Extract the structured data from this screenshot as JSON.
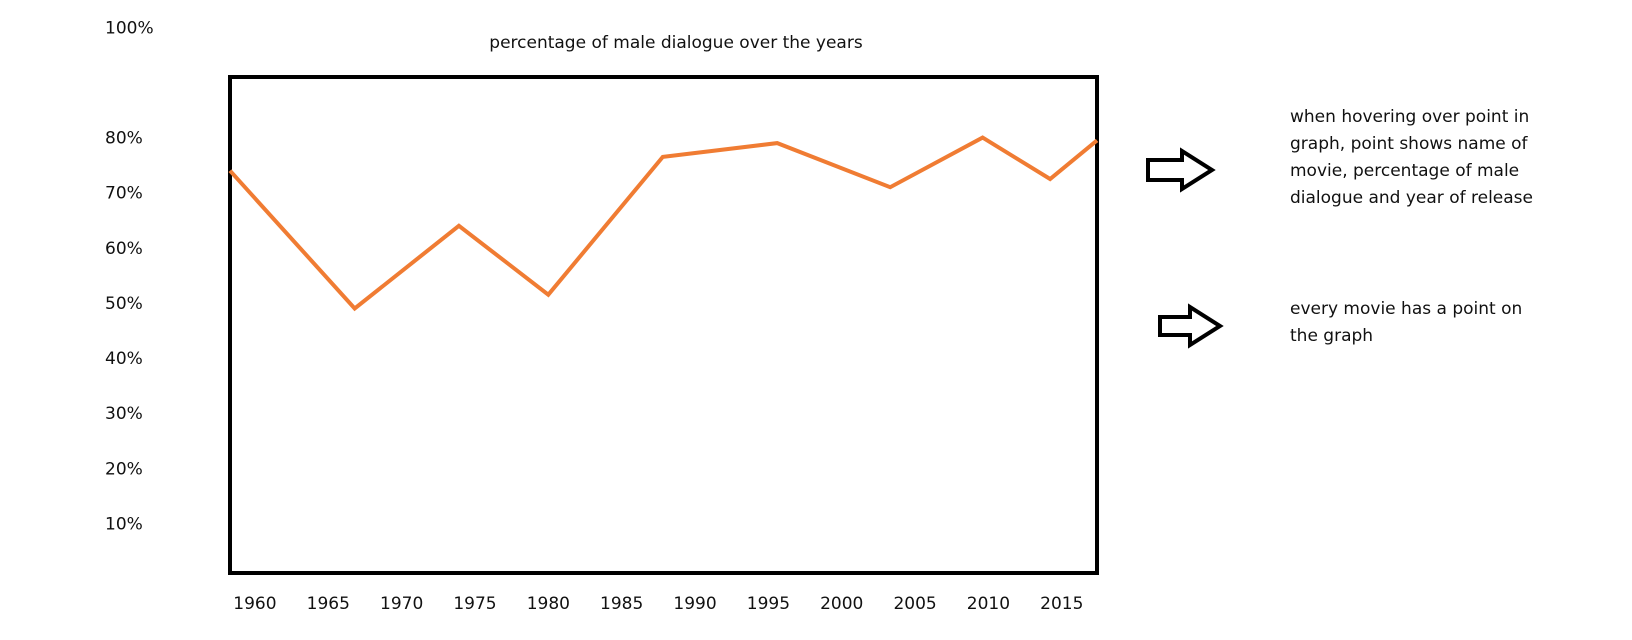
{
  "chart_data": {
    "type": "line",
    "title": "percentage of male dialogue over the years",
    "xlabel": "",
    "ylabel": "",
    "x_ticks": [
      "1960",
      "1965",
      "1970",
      "1975",
      "1980",
      "1985",
      "1990",
      "1995",
      "2000",
      "2005",
      "2010",
      "2015"
    ],
    "y_ticks": [
      "10%",
      "20%",
      "30%",
      "40%",
      "50%",
      "60%",
      "70%",
      "80%",
      "100%"
    ],
    "xlim": [
      1959.8,
      2018.9
    ],
    "ylim": [
      1,
      91
    ],
    "grid": false,
    "line_color": "#f07c33",
    "series": [
      {
        "x": [
          1959.8,
          1968.3,
          1975.4,
          1981.5,
          1989.3,
          1997.1,
          2004.8,
          2011.1,
          2015.7,
          2018.9
        ],
        "y": [
          74,
          49,
          64,
          51.5,
          76.5,
          79,
          71,
          80,
          72.5,
          79.5
        ]
      }
    ]
  },
  "notes": [
    {
      "text": "when hovering over point in graph, point shows name of movie, percentage of male dialogue and year of release",
      "icon": "right-arrow-icon"
    },
    {
      "text": "every movie has a point on the graph",
      "icon": "right-arrow-icon"
    }
  ]
}
